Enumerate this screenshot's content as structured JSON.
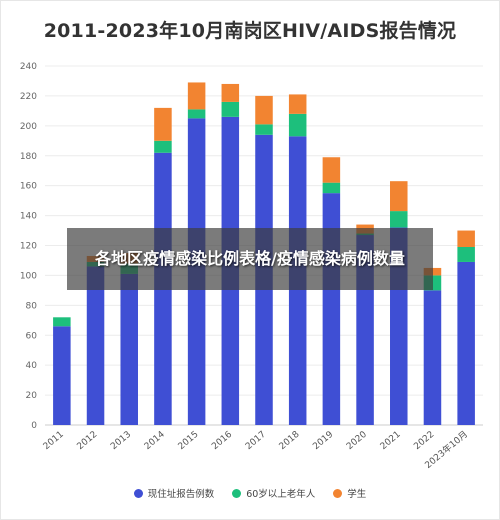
{
  "chart_data": {
    "type": "bar",
    "stacked": true,
    "title": "2011-2023年10月南岗区HIV/AIDS报告情况",
    "categories": [
      "2011",
      "2012",
      "2013",
      "2014",
      "2015",
      "2016",
      "2017",
      "2018",
      "2019",
      "2020",
      "2021",
      "2022",
      "2023年10月"
    ],
    "series": [
      {
        "name": "现住址报告例数",
        "color": "#3f4fd4",
        "values": [
          66,
          106,
          101,
          182,
          205,
          206,
          194,
          193,
          155,
          127,
          132,
          90,
          109
        ]
      },
      {
        "name": "60岁以上老年人",
        "color": "#1dbf7c",
        "values": [
          6,
          3,
          7,
          8,
          6,
          10,
          7,
          15,
          7,
          1,
          11,
          10,
          10
        ]
      },
      {
        "name": "学生",
        "color": "#f28431",
        "values": [
          0,
          4,
          7,
          22,
          18,
          12,
          19,
          13,
          17,
          6,
          20,
          5,
          11
        ]
      }
    ],
    "ylim": [
      0,
      240
    ],
    "yticks": [
      0,
      20,
      40,
      60,
      80,
      100,
      120,
      140,
      160,
      180,
      200,
      220,
      240
    ],
    "grid": true,
    "legend_position": "bottom"
  },
  "banner": {
    "text": "各地区疫情感染比例表格/疫情感染病例数量"
  }
}
